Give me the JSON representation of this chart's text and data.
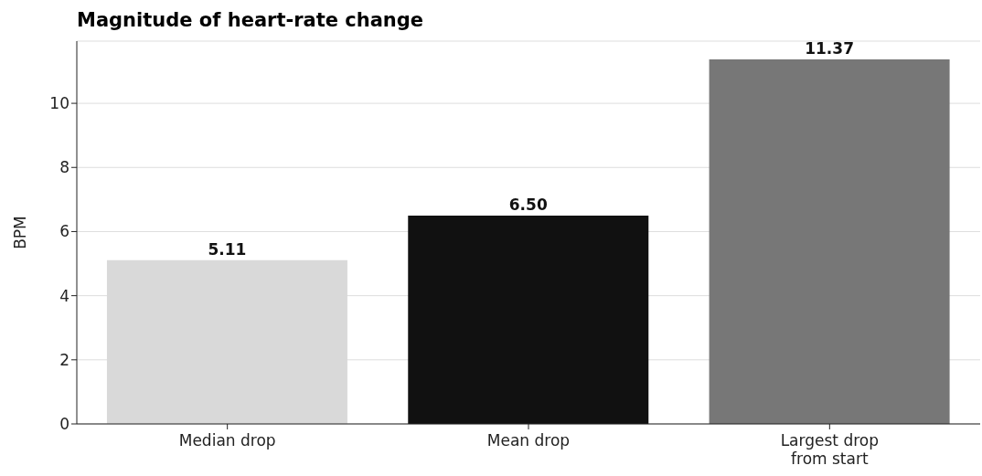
{
  "chart_data": {
    "type": "bar",
    "title": "Magnitude of heart-rate change",
    "ylabel": "BPM",
    "categories": [
      "Median drop",
      "Mean drop",
      "Largest drop from start"
    ],
    "values": [
      5.11,
      6.5,
      11.37
    ],
    "colors": [
      "#d9d9d9",
      "#111111",
      "#777777"
    ],
    "value_labels": [
      "5.11",
      "6.50",
      "11.37"
    ],
    "ylim": [
      0,
      11.94
    ],
    "yticks": [
      0,
      2,
      4,
      6,
      8,
      10
    ],
    "grid": "y"
  }
}
